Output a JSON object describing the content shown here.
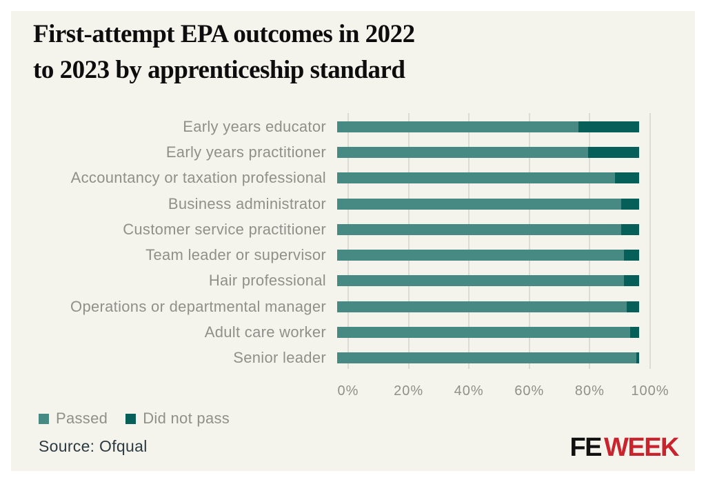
{
  "title": {
    "line1": "First-attempt EPA outcomes in 2022",
    "line2": "to 2023 by apprenticeship standard"
  },
  "chart_data": {
    "type": "bar",
    "orientation": "horizontal",
    "stacked": true,
    "title": "First-attempt EPA outcomes in 2022 to 2023 by apprenticeship standard",
    "categories": [
      "Early years educator",
      "Early years practitioner",
      "Accountancy or taxation professional",
      "Business administrator",
      "Customer service practitioner",
      "Team leader or supervisor",
      "Hair professional",
      "Operations or departmental manager",
      "Adult care worker",
      "Senior leader"
    ],
    "series": [
      {
        "name": "Passed",
        "color": "#478a84",
        "values": [
          80,
          83,
          92,
          94,
          94,
          95,
          95,
          96,
          97,
          99
        ]
      },
      {
        "name": "Did not pass",
        "color": "#065f58",
        "values": [
          20,
          17,
          8,
          6,
          6,
          5,
          5,
          4,
          3,
          1
        ]
      }
    ],
    "x_axis": {
      "min": 0,
      "max": 100,
      "ticks": [
        "0%",
        "20%",
        "40%",
        "60%",
        "80%",
        "100%"
      ]
    },
    "grid": "vertical",
    "legend_position": "bottom-left"
  },
  "footer": {
    "source": "Source: Ofqual",
    "logo": {
      "fe": "FE",
      "week": "WEEK",
      "fe_color": "#111111",
      "week_color": "#c9242e"
    }
  },
  "colors": {
    "page_background": "#ffffff",
    "panel_background": "#f4f3ec",
    "gridline": "#c5c4bd",
    "label_gray": "#908f8a",
    "source_text": "#2c3b41"
  }
}
